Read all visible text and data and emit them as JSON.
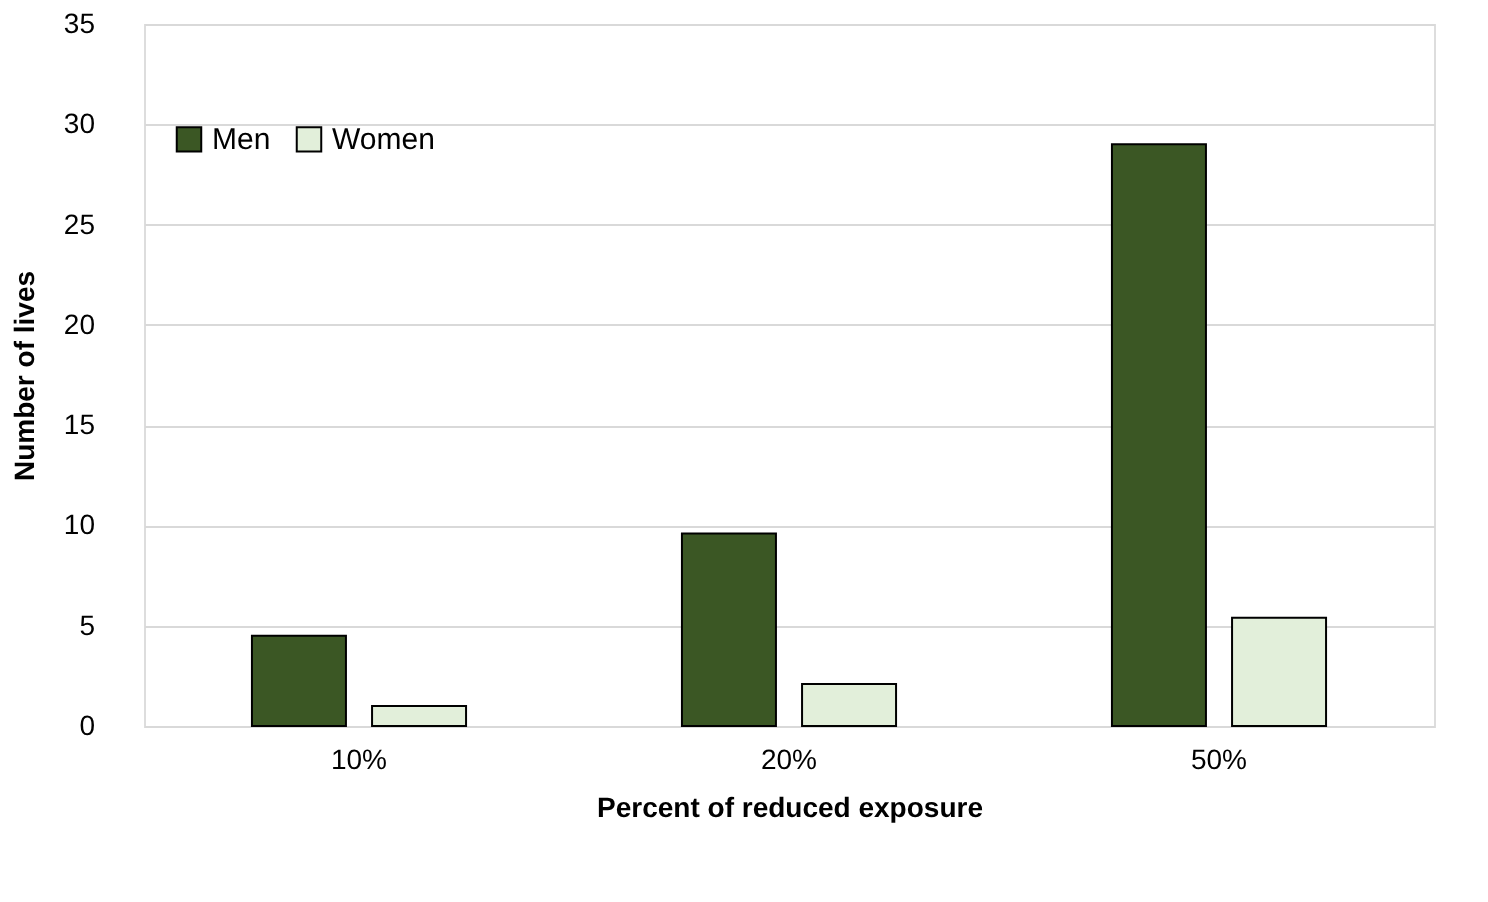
{
  "chart_data": {
    "type": "bar",
    "xlabel": "Percent of reduced exposure",
    "ylabel": "Number of lives",
    "categories": [
      "10%",
      "20%",
      "50%"
    ],
    "series": [
      {
        "name": "Men",
        "color": "#3b5724",
        "values": [
          4.5,
          9.6,
          29.0
        ]
      },
      {
        "name": "Women",
        "color": "#e2efda",
        "values": [
          1.0,
          2.1,
          5.4
        ]
      }
    ],
    "ylim": [
      0,
      35
    ],
    "yticks": [
      0,
      5,
      10,
      15,
      20,
      25,
      30,
      35
    ],
    "grid": "y",
    "legend": "top left"
  }
}
